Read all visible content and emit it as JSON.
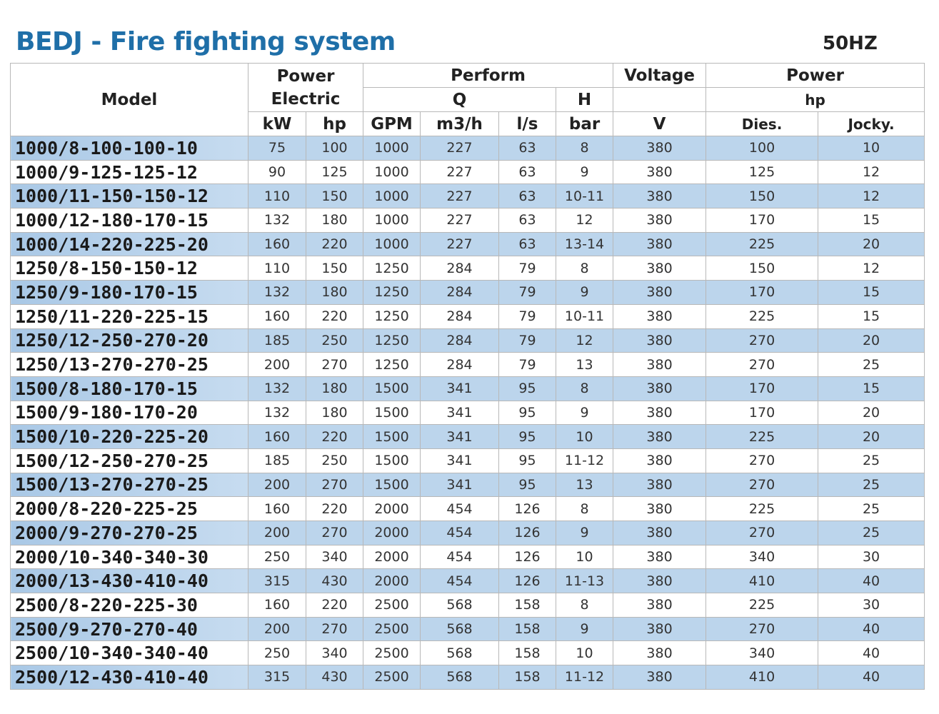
{
  "title": "BEDJ - Fire fighting system",
  "frequency": "50HZ",
  "header": {
    "model": "Model",
    "power_electric": "Power Electric",
    "perform": "Perform",
    "q": "Q",
    "h": "H",
    "voltage": "Voltage",
    "power": "Power",
    "power_unit": "hp",
    "kw": "kW",
    "hp": "hp",
    "gpm": "GPM",
    "m3h": "m3/h",
    "ls": "l/s",
    "bar": "bar",
    "v": "V",
    "dies": "Dies.",
    "jocky": "Jocky."
  },
  "rows": [
    [
      "1000/8-100-100-10",
      "75",
      "100",
      "1000",
      "227",
      "63",
      "8",
      "380",
      "100",
      "10"
    ],
    [
      "1000/9-125-125-12",
      "90",
      "125",
      "1000",
      "227",
      "63",
      "9",
      "380",
      "125",
      "12"
    ],
    [
      "1000/11-150-150-12",
      "110",
      "150",
      "1000",
      "227",
      "63",
      "10-11",
      "380",
      "150",
      "12"
    ],
    [
      "1000/12-180-170-15",
      "132",
      "180",
      "1000",
      "227",
      "63",
      "12",
      "380",
      "170",
      "15"
    ],
    [
      "1000/14-220-225-20",
      "160",
      "220",
      "1000",
      "227",
      "63",
      "13-14",
      "380",
      "225",
      "20"
    ],
    [
      "1250/8-150-150-12",
      "110",
      "150",
      "1250",
      "284",
      "79",
      "8",
      "380",
      "150",
      "12"
    ],
    [
      "1250/9-180-170-15",
      "132",
      "180",
      "1250",
      "284",
      "79",
      "9",
      "380",
      "170",
      "15"
    ],
    [
      "1250/11-220-225-15",
      "160",
      "220",
      "1250",
      "284",
      "79",
      "10-11",
      "380",
      "225",
      "15"
    ],
    [
      "1250/12-250-270-20",
      "185",
      "250",
      "1250",
      "284",
      "79",
      "12",
      "380",
      "270",
      "20"
    ],
    [
      "1250/13-270-270-25",
      "200",
      "270",
      "1250",
      "284",
      "79",
      "13",
      "380",
      "270",
      "25"
    ],
    [
      "1500/8-180-170-15",
      "132",
      "180",
      "1500",
      "341",
      "95",
      "8",
      "380",
      "170",
      "15"
    ],
    [
      "1500/9-180-170-20",
      "132",
      "180",
      "1500",
      "341",
      "95",
      "9",
      "380",
      "170",
      "20"
    ],
    [
      "1500/10-220-225-20",
      "160",
      "220",
      "1500",
      "341",
      "95",
      "10",
      "380",
      "225",
      "20"
    ],
    [
      "1500/12-250-270-25",
      "185",
      "250",
      "1500",
      "341",
      "95",
      "11-12",
      "380",
      "270",
      "25"
    ],
    [
      "1500/13-270-270-25",
      "200",
      "270",
      "1500",
      "341",
      "95",
      "13",
      "380",
      "270",
      "25"
    ],
    [
      "2000/8-220-225-25",
      "160",
      "220",
      "2000",
      "454",
      "126",
      "8",
      "380",
      "225",
      "25"
    ],
    [
      "2000/9-270-270-25",
      "200",
      "270",
      "2000",
      "454",
      "126",
      "9",
      "380",
      "270",
      "25"
    ],
    [
      "2000/10-340-340-30",
      "250",
      "340",
      "2000",
      "454",
      "126",
      "10",
      "380",
      "340",
      "30"
    ],
    [
      "2000/13-430-410-40",
      "315",
      "430",
      "2000",
      "454",
      "126",
      "11-13",
      "380",
      "410",
      "40"
    ],
    [
      "2500/8-220-225-30",
      "160",
      "220",
      "2500",
      "568",
      "158",
      "8",
      "380",
      "225",
      "30"
    ],
    [
      "2500/9-270-270-40",
      "200",
      "270",
      "2500",
      "568",
      "158",
      "9",
      "380",
      "270",
      "40"
    ],
    [
      "2500/10-340-340-40",
      "250",
      "340",
      "2500",
      "568",
      "158",
      "10",
      "380",
      "340",
      "40"
    ],
    [
      "2500/12-430-410-40",
      "315",
      "430",
      "2500",
      "568",
      "158",
      "11-12",
      "380",
      "410",
      "40"
    ]
  ]
}
